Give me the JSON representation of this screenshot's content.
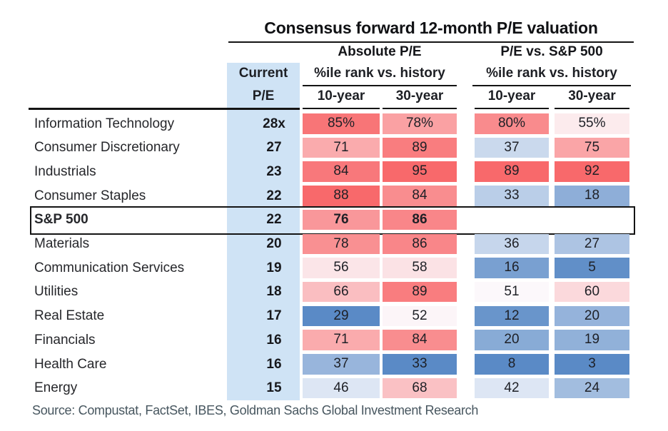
{
  "title": "Consensus forward 12-month P/E valuation",
  "groups": {
    "absolute": "Absolute P/E",
    "relative": "P/E vs. S&P 500"
  },
  "col_headers": {
    "current": "Current",
    "pe": "P/E",
    "pct_rank_abs": "%ile rank vs. history",
    "pct_rank_rel": "%ile rank vs. history",
    "abs_10y": "10-year",
    "abs_30y": "30-year",
    "rel_10y": "10-year",
    "rel_30y": "30-year"
  },
  "source": "Source: Compustat, FactSet, IBES, Goldman Sachs Global Investment Research",
  "colors": {
    "scale_red": "#F8696B",
    "scale_white": "#FCFCFF",
    "scale_blue": "#5A8AC6",
    "pe_column_bg": "#CFE3F5",
    "scale_midpoint": 50
  },
  "chart_data": {
    "type": "heatmap",
    "title": "Consensus forward 12-month P/E valuation",
    "columns": [
      "Current P/E",
      "Absolute P/E %ile rank vs. history 10-year",
      "Absolute P/E %ile rank vs. history 30-year",
      "P/E vs. S&P 500 %ile rank vs. history 10-year",
      "P/E vs. S&P 500 %ile rank vs. history 30-year"
    ],
    "rows": [
      {
        "sector": "Information Technology",
        "pe": "28x",
        "values": [
          "85%",
          "78%",
          "80%",
          "55%"
        ],
        "highlight": false
      },
      {
        "sector": "Consumer Discretionary",
        "pe": "27",
        "values": [
          "71",
          "89",
          "37",
          "75"
        ],
        "highlight": false
      },
      {
        "sector": "Industrials",
        "pe": "23",
        "values": [
          "84",
          "95",
          "89",
          "92"
        ],
        "highlight": false
      },
      {
        "sector": "Consumer Staples",
        "pe": "22",
        "values": [
          "88",
          "84",
          "33",
          "18"
        ],
        "highlight": false
      },
      {
        "sector": "S&P 500",
        "pe": "22",
        "values": [
          "76",
          "86",
          "",
          ""
        ],
        "highlight": true
      },
      {
        "sector": "Materials",
        "pe": "20",
        "values": [
          "78",
          "86",
          "36",
          "27"
        ],
        "highlight": false
      },
      {
        "sector": "Communication Services",
        "pe": "19",
        "values": [
          "56",
          "58",
          "16",
          "5"
        ],
        "highlight": false
      },
      {
        "sector": "Utilities",
        "pe": "18",
        "values": [
          "66",
          "89",
          "51",
          "60"
        ],
        "highlight": false
      },
      {
        "sector": "Real Estate",
        "pe": "17",
        "values": [
          "29",
          "52",
          "12",
          "20"
        ],
        "highlight": false
      },
      {
        "sector": "Financials",
        "pe": "16",
        "values": [
          "71",
          "84",
          "20",
          "19"
        ],
        "highlight": false
      },
      {
        "sector": "Health Care",
        "pe": "16",
        "values": [
          "37",
          "33",
          "8",
          "3"
        ],
        "highlight": false
      },
      {
        "sector": "Energy",
        "pe": "15",
        "values": [
          "46",
          "68",
          "42",
          "24"
        ],
        "highlight": false
      }
    ],
    "legend_note": "cells colored on red(high)-white-blue(low) scale per column, midpoint 50"
  }
}
